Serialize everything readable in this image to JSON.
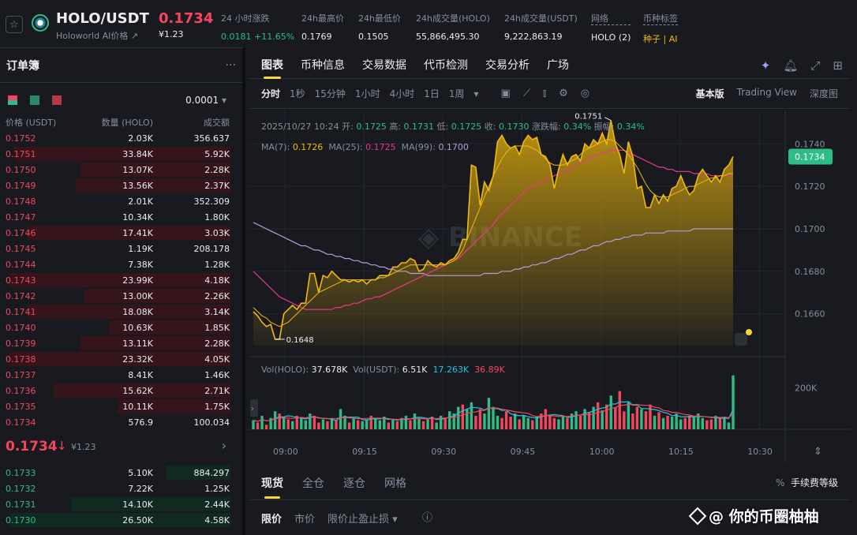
{
  "header": {
    "symbol": "HOLO/USDT",
    "subtitle": "Holoworld AI价格 ↗",
    "last_price": "0.1734",
    "last_price_usd": "¥1.23",
    "stats": [
      {
        "label": "24 小时涨跌",
        "value": "0.0181 +11.65%",
        "color": "#2ebd85"
      },
      {
        "label": "24h最高价",
        "value": "0.1769",
        "color": "#eaecef"
      },
      {
        "label": "24h最低价",
        "value": "0.1505",
        "color": "#eaecef"
      },
      {
        "label": "24h成交量(HOLO)",
        "value": "55,866,495.30",
        "color": "#eaecef"
      },
      {
        "label": "24h成交量(USDT)",
        "value": "9,222,863.19",
        "color": "#eaecef"
      },
      {
        "label": "网络",
        "value": "HOLO (2)",
        "color": "#eaecef"
      },
      {
        "label": "币种标签",
        "value": "种子 | AI",
        "color": "#f0b90b"
      }
    ]
  },
  "orderbook": {
    "title": "订单簿",
    "more": "···",
    "precision": "0.0001",
    "columns": [
      "价格 (USDT)",
      "数量 (HOLO)",
      "成交额"
    ],
    "asks": [
      {
        "p": "0.1752",
        "q": "2.03K",
        "t": "356.637",
        "d": 0.0
      },
      {
        "p": "0.1751",
        "q": "33.84K",
        "t": "5.92K",
        "d": 0.98
      },
      {
        "p": "0.1750",
        "q": "13.07K",
        "t": "2.28K",
        "d": 0.68
      },
      {
        "p": "0.1749",
        "q": "13.56K",
        "t": "2.37K",
        "d": 0.7
      },
      {
        "p": "0.1748",
        "q": "2.01K",
        "t": "352.309",
        "d": 0.0
      },
      {
        "p": "0.1747",
        "q": "10.34K",
        "t": "1.80K",
        "d": 0.0
      },
      {
        "p": "0.1746",
        "q": "17.41K",
        "t": "3.03K",
        "d": 0.92
      },
      {
        "p": "0.1745",
        "q": "1.19K",
        "t": "208.178",
        "d": 0.0
      },
      {
        "p": "0.1744",
        "q": "7.38K",
        "t": "1.28K",
        "d": 0.0
      },
      {
        "p": "0.1743",
        "q": "23.99K",
        "t": "4.18K",
        "d": 1.0
      },
      {
        "p": "0.1742",
        "q": "13.00K",
        "t": "2.26K",
        "d": 0.66
      },
      {
        "p": "0.1741",
        "q": "18.08K",
        "t": "3.14K",
        "d": 0.92
      },
      {
        "p": "0.1740",
        "q": "10.63K",
        "t": "1.85K",
        "d": 0.55
      },
      {
        "p": "0.1739",
        "q": "13.11K",
        "t": "2.28K",
        "d": 0.68
      },
      {
        "p": "0.1738",
        "q": "23.32K",
        "t": "4.05K",
        "d": 1.0
      },
      {
        "p": "0.1737",
        "q": "8.41K",
        "t": "1.46K",
        "d": 0.0
      },
      {
        "p": "0.1736",
        "q": "15.62K",
        "t": "2.71K",
        "d": 0.8
      },
      {
        "p": "0.1735",
        "q": "10.11K",
        "t": "1.75K",
        "d": 0.51
      },
      {
        "p": "0.1734",
        "q": "576.9",
        "t": "100.034",
        "d": 0.0
      }
    ],
    "mid": {
      "price": "0.1734",
      "arrow": "↓",
      "usd": "¥1.23",
      "chevron": "›"
    },
    "bids": [
      {
        "p": "0.1733",
        "q": "5.10K",
        "t": "884.297",
        "d": 0.29
      },
      {
        "p": "0.1732",
        "q": "7.22K",
        "t": "1.25K",
        "d": 0.0
      },
      {
        "p": "0.1731",
        "q": "14.10K",
        "t": "2.44K",
        "d": 0.72
      },
      {
        "p": "0.1730",
        "q": "26.50K",
        "t": "4.58K",
        "d": 1.0
      }
    ]
  },
  "chart_tabs": [
    "图表",
    "币种信息",
    "交易数据",
    "代币检测",
    "交易分析",
    "广场"
  ],
  "intervals": [
    "分时",
    "1秒",
    "15分钟",
    "1小时",
    "4小时",
    "1日",
    "1周",
    "▾"
  ],
  "view_modes": [
    "基本版",
    "Trading View",
    "深度图"
  ],
  "ohlc": {
    "date": "2025/10/27 10:24",
    "fields": [
      {
        "k": "开:",
        "v": "0.1725"
      },
      {
        "k": "高:",
        "v": "0.1731"
      },
      {
        "k": "低:",
        "v": "0.1725"
      },
      {
        "k": "收:",
        "v": "0.1730"
      },
      {
        "k": "涨跌幅:",
        "v": "0.34%"
      },
      {
        "k": "振幅:",
        "v": "0.34%"
      }
    ]
  },
  "ma": {
    "ma7_label": "MA(7):",
    "ma7": "0.1726",
    "ma25_label": "MA(25):",
    "ma25": "0.1725",
    "ma99_label": "MA(99):",
    "ma99": "0.1700"
  },
  "vol": {
    "l1": "Vol(HOLO):",
    "v1": "37.678K",
    "l2": "Vol(USDT):",
    "v2": "6.51K",
    "v3": "17.263K",
    "v4": "36.89K"
  },
  "colors": {
    "up": "#2ebd85",
    "down": "#f6465d",
    "accent": "#fcd535",
    "line": "#f0b90b",
    "ma25": "#e6398a",
    "ma99": "#b39ddb",
    "ma_vol1": "#21c5e0"
  },
  "chart_data": {
    "type": "area",
    "y_ticks": [
      "0.1740",
      "0.1720",
      "0.1700",
      "0.1680",
      "0.1660"
    ],
    "x_ticks": [
      "09:00",
      "09:15",
      "09:30",
      "09:45",
      "10:00",
      "10:15",
      "10:30"
    ],
    "ylim": [
      0.1645,
      0.1752
    ],
    "current_price": "0.1734",
    "high_marker": "0.1751",
    "low_marker": "0.1648",
    "vol_tick": "200K",
    "price": [
      0.1661,
      0.1659,
      0.1656,
      0.1654,
      0.1655,
      0.1648,
      0.1648,
      0.166,
      0.1662,
      0.1664,
      0.1662,
      0.1665,
      0.1665,
      0.1679,
      0.1679,
      0.167,
      0.1678,
      0.1677,
      0.168,
      0.1678,
      0.1676,
      0.1676,
      0.1675,
      0.1676,
      0.1675,
      0.1676,
      0.1674,
      0.1676,
      0.1676,
      0.1678,
      0.1678,
      0.1678,
      0.1682,
      0.1682,
      0.1684,
      0.1684,
      0.1686,
      0.1685,
      0.168,
      0.1681,
      0.1685,
      0.1683,
      0.1682,
      0.1684,
      0.1683,
      0.1685,
      0.1686,
      0.1689,
      0.1695,
      0.1695,
      0.173,
      0.1729,
      0.1711,
      0.1722,
      0.1718,
      0.1725,
      0.1741,
      0.1744,
      0.174,
      0.1738,
      0.1739,
      0.1735,
      0.1741,
      0.1744,
      0.1742,
      0.1743,
      0.1735,
      0.1734,
      0.173,
      0.1719,
      0.1728,
      0.1735,
      0.173,
      0.1734,
      0.1735,
      0.1732,
      0.174,
      0.1738,
      0.1742,
      0.174,
      0.1745,
      0.174,
      0.1751,
      0.174,
      0.1735,
      0.1726,
      0.1741,
      0.1734,
      0.1719,
      0.172,
      0.171,
      0.171,
      0.1716,
      0.1712,
      0.1716,
      0.1713,
      0.1719,
      0.172,
      0.1725,
      0.172,
      0.1716,
      0.1718,
      0.1725,
      0.1728,
      0.1725,
      0.1722,
      0.1725,
      0.1722,
      0.1728,
      0.173,
      0.1734
    ],
    "ma7": [
      0.1663,
      0.1661,
      0.1659,
      0.1658,
      0.1656,
      0.1655,
      0.1654,
      0.1655,
      0.1656,
      0.1658,
      0.166,
      0.1662,
      0.1664,
      0.1666,
      0.1668,
      0.167,
      0.1671,
      0.1672,
      0.1673,
      0.1674,
      0.1675,
      0.1676,
      0.1676,
      0.1676,
      0.1676,
      0.1676,
      0.1676,
      0.1676,
      0.1676,
      0.1677,
      0.1677,
      0.1678,
      0.1679,
      0.168,
      0.1681,
      0.1682,
      0.1683,
      0.1683,
      0.1683,
      0.1683,
      0.1683,
      0.1683,
      0.1683,
      0.1683,
      0.1683,
      0.1684,
      0.1685,
      0.1687,
      0.169,
      0.1695,
      0.17,
      0.1705,
      0.171,
      0.1715,
      0.172,
      0.1725,
      0.1729,
      0.1733,
      0.1736,
      0.1738,
      0.1739,
      0.1739,
      0.1739,
      0.1739,
      0.1738,
      0.1737,
      0.1735,
      0.1733,
      0.1731,
      0.173,
      0.173,
      0.173,
      0.1731,
      0.1732,
      0.1733,
      0.1735,
      0.1737,
      0.1738,
      0.1739,
      0.174,
      0.1741,
      0.1742,
      0.1742,
      0.1741,
      0.1739,
      0.1737,
      0.1735,
      0.1732,
      0.1729,
      0.1725,
      0.1721,
      0.1718,
      0.1716,
      0.1715,
      0.1715,
      0.1715,
      0.1716,
      0.1717,
      0.1718,
      0.1719,
      0.172,
      0.172,
      0.1721,
      0.1722,
      0.1723,
      0.1724,
      0.1724,
      0.1725,
      0.1725,
      0.1726,
      0.1726
    ],
    "ma25": [
      0.168,
      0.1678,
      0.1676,
      0.1674,
      0.1672,
      0.167,
      0.1668,
      0.1667,
      0.1666,
      0.1665,
      0.1664,
      0.1663,
      0.1662,
      0.1662,
      0.1662,
      0.1662,
      0.1662,
      0.1662,
      0.1662,
      0.1663,
      0.1663,
      0.1664,
      0.1664,
      0.1665,
      0.1665,
      0.1666,
      0.1667,
      0.1667,
      0.1668,
      0.1668,
      0.1669,
      0.167,
      0.1671,
      0.1672,
      0.1673,
      0.1674,
      0.1675,
      0.1676,
      0.1677,
      0.1678,
      0.1679,
      0.168,
      0.1681,
      0.1682,
      0.1683,
      0.1684,
      0.1685,
      0.1686,
      0.1688,
      0.169,
      0.1692,
      0.1694,
      0.1696,
      0.1698,
      0.17,
      0.1702,
      0.1705,
      0.1707,
      0.1709,
      0.1711,
      0.1713,
      0.1715,
      0.1717,
      0.1719,
      0.172,
      0.1721,
      0.1722,
      0.1723,
      0.1724,
      0.1725,
      0.1726,
      0.1727,
      0.1728,
      0.1729,
      0.173,
      0.1731,
      0.1732,
      0.1733,
      0.1734,
      0.1735,
      0.1736,
      0.1736,
      0.1737,
      0.1737,
      0.1737,
      0.1737,
      0.1736,
      0.1735,
      0.1734,
      0.1733,
      0.1732,
      0.1731,
      0.173,
      0.1729,
      0.1729,
      0.1728,
      0.1728,
      0.1727,
      0.1727,
      0.1727,
      0.1727,
      0.1726,
      0.1726,
      0.1726,
      0.1726,
      0.1725,
      0.1725,
      0.1725,
      0.1725,
      0.1725,
      0.1725
    ],
    "ma99": [
      0.1703,
      0.1702,
      0.1701,
      0.17,
      0.1699,
      0.1698,
      0.1697,
      0.1696,
      0.1695,
      0.1694,
      0.1693,
      0.1692,
      0.1692,
      0.1691,
      0.169,
      0.169,
      0.1689,
      0.1688,
      0.1688,
      0.1687,
      0.1687,
      0.1686,
      0.1686,
      0.1685,
      0.1685,
      0.1684,
      0.1684,
      0.1683,
      0.1683,
      0.1682,
      0.1682,
      0.1681,
      0.1681,
      0.168,
      0.168,
      0.168,
      0.1679,
      0.1679,
      0.1679,
      0.1679,
      0.1678,
      0.1678,
      0.1678,
      0.1678,
      0.1678,
      0.1678,
      0.1678,
      0.1678,
      0.1678,
      0.1678,
      0.1678,
      0.1678,
      0.1678,
      0.1679,
      0.1679,
      0.1679,
      0.1679,
      0.168,
      0.168,
      0.168,
      0.1681,
      0.1681,
      0.1682,
      0.1682,
      0.1683,
      0.1683,
      0.1684,
      0.1684,
      0.1685,
      0.1686,
      0.1686,
      0.1687,
      0.1688,
      0.1688,
      0.1689,
      0.169,
      0.169,
      0.1691,
      0.1692,
      0.1692,
      0.1693,
      0.1694,
      0.1694,
      0.1695,
      0.1695,
      0.1696,
      0.1696,
      0.1697,
      0.1697,
      0.1697,
      0.1698,
      0.1698,
      0.1698,
      0.1698,
      0.1698,
      0.1699,
      0.1699,
      0.1699,
      0.1699,
      0.1699,
      0.1699,
      0.17,
      0.17,
      0.17,
      0.17,
      0.17,
      0.17,
      0.17,
      0.17,
      0.17,
      0.17
    ],
    "volume": [
      20,
      15,
      30,
      10,
      25,
      40,
      35,
      28,
      22,
      18,
      30,
      25,
      20,
      35,
      30,
      15,
      22,
      18,
      25,
      20,
      45,
      30,
      15,
      25,
      20,
      18,
      22,
      30,
      25,
      20,
      28,
      15,
      22,
      18,
      25,
      30,
      20,
      35,
      25,
      18,
      22,
      28,
      15,
      30,
      25,
      40,
      35,
      50,
      55,
      45,
      60,
      30,
      45,
      35,
      70,
      50,
      30,
      25,
      40,
      28,
      35,
      22,
      30,
      25,
      20,
      28,
      35,
      45,
      30,
      25,
      22,
      30,
      25,
      35,
      40,
      30,
      45,
      38,
      50,
      60,
      42,
      55,
      75,
      48,
      85,
      40,
      60,
      35,
      50,
      45,
      40,
      55,
      30,
      38,
      25,
      30,
      28,
      35,
      22,
      25,
      30,
      28,
      35,
      25,
      20,
      22,
      30,
      25,
      28,
      15,
      120
    ],
    "vol_up": [
      1,
      0,
      1,
      0,
      1,
      1,
      0,
      1,
      0,
      1,
      0,
      1,
      1,
      1,
      0,
      0,
      1,
      0,
      1,
      0,
      1,
      1,
      0,
      1,
      0,
      1,
      1,
      0,
      1,
      1,
      1,
      0,
      1,
      0,
      1,
      1,
      0,
      1,
      1,
      0,
      1,
      0,
      1,
      1,
      0,
      1,
      1,
      1,
      0,
      1,
      1,
      0,
      0,
      1,
      1,
      1,
      1,
      0,
      0,
      0,
      1,
      0,
      1,
      1,
      0,
      1,
      0,
      0,
      0,
      0,
      1,
      1,
      0,
      1,
      1,
      0,
      1,
      0,
      1,
      0,
      1,
      0,
      1,
      0,
      0,
      0,
      1,
      0,
      0,
      1,
      0,
      0,
      1,
      0,
      1,
      0,
      1,
      1,
      1,
      0,
      0,
      1,
      1,
      1,
      0,
      0,
      1,
      0,
      1,
      1,
      1
    ]
  },
  "bottom": {
    "tabs": [
      "现货",
      "全仓",
      "逐仓",
      "网格"
    ],
    "fee": "手续费等级",
    "order_types": [
      "限价",
      "市价",
      "限价止盈止损 ▾"
    ],
    "watermark": "@ 你的币圈柚柚"
  }
}
